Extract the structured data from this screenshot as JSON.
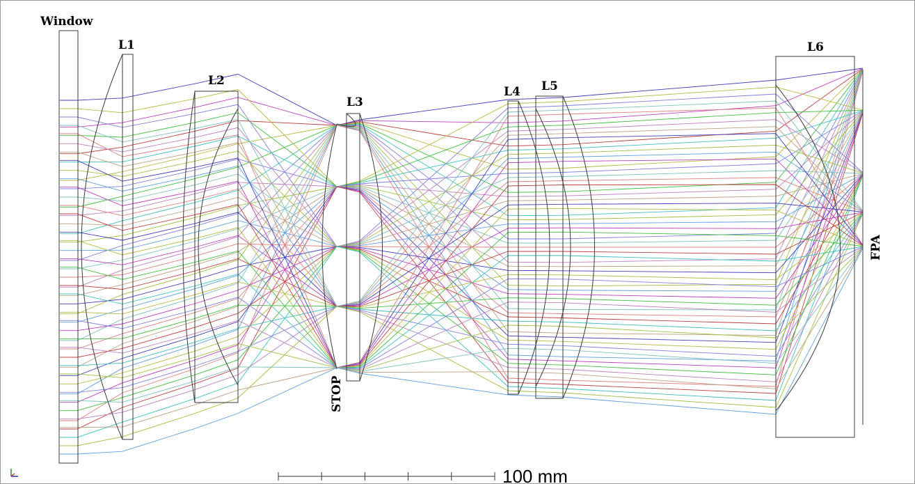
{
  "labels": {
    "window": "Window",
    "l1": "L1",
    "l2": "L2",
    "l3": "L3",
    "l4": "L4",
    "l5": "L5",
    "l6": "L6",
    "stop": "STOP",
    "fpa": "FPA"
  },
  "scale_bar": {
    "text": "100 mm",
    "divisions": 5
  },
  "field_angles": 5,
  "rays_per_field": 13,
  "ray_colors": [
    "#3f3fbf",
    "#bf3fbf",
    "#bf3f3f",
    "#b8b840",
    "#3fbf3f",
    "#3fbfbf",
    "#7f7fdf",
    "#bf7fbf",
    "#9fbf3f",
    "#7fbfbf",
    "#bf9f7f",
    "#5f9fdf",
    "#df7f7f"
  ]
}
